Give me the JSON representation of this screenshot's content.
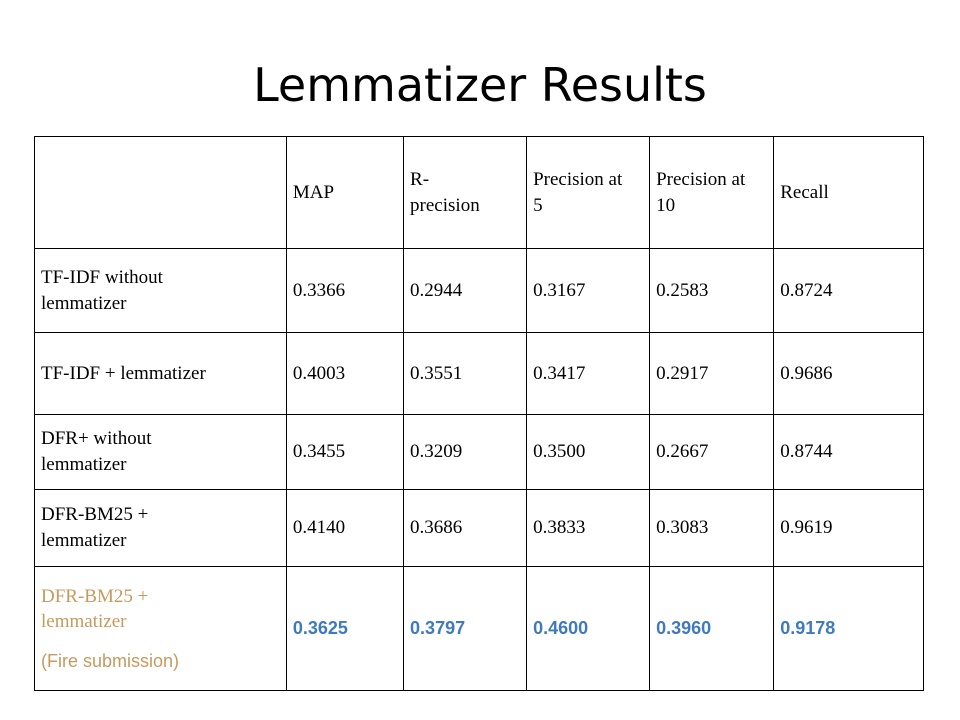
{
  "title": "Lemmatizer Results",
  "table": {
    "headers": [
      "",
      "MAP",
      "R-\nprecision",
      "Precision at\n5",
      "Precision at\n10",
      "Recall"
    ],
    "rows": [
      {
        "label": "TF-IDF without\nlemmatizer",
        "values": [
          "0.3366",
          "0.2944",
          "0.3167",
          "0.2583",
          "0.8724"
        ]
      },
      {
        "label": "TF-IDF + lemmatizer",
        "values": [
          "0.4003",
          "0.3551",
          "0.3417",
          "0.2917",
          "0.9686"
        ]
      },
      {
        "label": "DFR+ without\nlemmatizer",
        "values": [
          "0.3455",
          "0.3209",
          "0.3500",
          "0.2667",
          "0.8744"
        ]
      },
      {
        "label": "DFR-BM25 +\nlemmatizer",
        "values": [
          "0.4140",
          "0.3686",
          "0.3833",
          "0.3083",
          "0.9619"
        ]
      },
      {
        "label": "DFR-BM25 +\nlemmatizer",
        "note": "(Fire submission)",
        "values": [
          "0.3625",
          "0.3797",
          "0.4600",
          "0.3960",
          "0.9178"
        ]
      }
    ]
  },
  "colors": {
    "highlight_label": "#c69a5e",
    "highlight_value": "#3e7abd"
  }
}
